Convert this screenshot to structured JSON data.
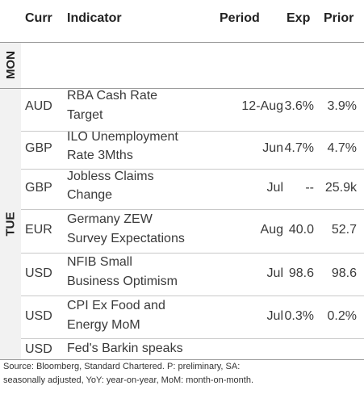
{
  "header": {
    "curr": "Curr",
    "indicator": "Indicator",
    "period": "Period",
    "exp": "Exp",
    "prior": "Prior"
  },
  "days": {
    "mon": "MON",
    "tue": "TUE"
  },
  "rows": [
    {
      "curr": "AUD",
      "indicator_line1": "RBA Cash Rate",
      "indicator_line2": "Target",
      "period": "12-Aug",
      "exp": "3.6%",
      "prior": "3.9%"
    },
    {
      "curr": "GBP",
      "indicator_line1": "ILO Unemployment",
      "indicator_line2": "Rate 3Mths",
      "period": "Jun",
      "exp": "4.7%",
      "prior": "4.7%"
    },
    {
      "curr": "GBP",
      "indicator_line1": "Jobless Claims",
      "indicator_line2": "Change",
      "period": "Jul",
      "exp": "--",
      "prior": "25.9k"
    },
    {
      "curr": "EUR",
      "indicator_line1": "Germany ZEW",
      "indicator_line2": "Survey Expectations",
      "period": "Aug",
      "exp": "40.0",
      "prior": "52.7"
    },
    {
      "curr": "USD",
      "indicator_line1": "NFIB Small",
      "indicator_line2": "Business Optimism",
      "period": "Jul",
      "exp": "98.6",
      "prior": "98.6"
    },
    {
      "curr": "USD",
      "indicator_line1": "CPI Ex Food and",
      "indicator_line2": "Energy MoM",
      "period": "Jul",
      "exp": "0.3%",
      "prior": "0.2%"
    },
    {
      "curr": "USD",
      "indicator_line1": "Fed's Barkin speaks",
      "indicator_line2": "",
      "period": "",
      "exp": "",
      "prior": ""
    }
  ],
  "footer": {
    "line1": "Source: Bloomberg, Standard Chartered. P: preliminary, SA:",
    "line2": "seasonally adjusted, YoY: year-on-year, MoM: month-on-month."
  }
}
